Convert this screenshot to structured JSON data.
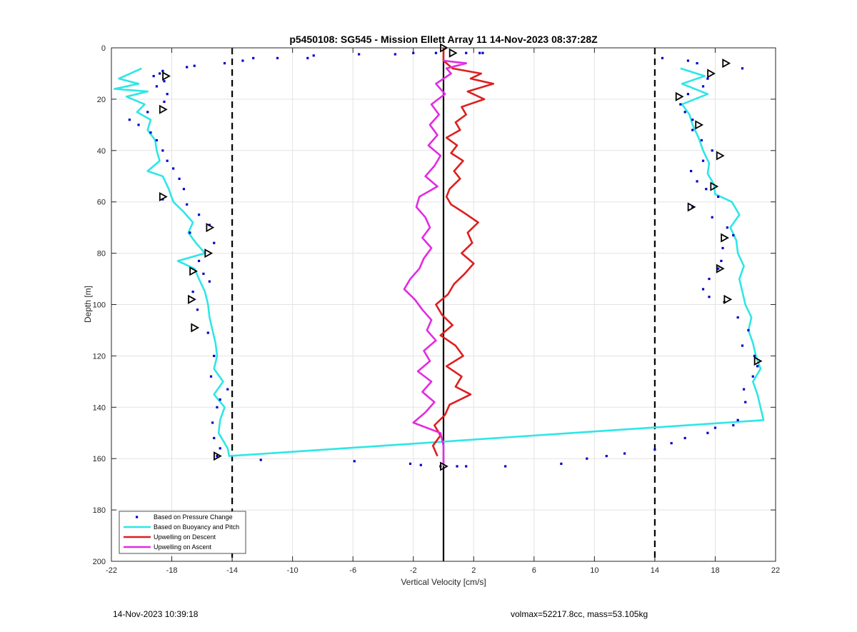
{
  "footer": {
    "timestamp": "14-Nov-2023 10:39:18",
    "params": "volmax=52217.8cc, mass=53.105kg"
  },
  "chart_data": {
    "type": "line",
    "title": "p5450108: SG545 - Mission Ellett Array 11 14-Nov-2023 08:37:28Z",
    "xlabel": "Vertical Velocity [cm/s]",
    "ylabel": "Depth [m]",
    "xlim": [
      -22,
      22
    ],
    "ylim": [
      0,
      200
    ],
    "y_reversed": true,
    "xticks": [
      -22,
      -18,
      -14,
      -10,
      -6,
      -2,
      2,
      6,
      10,
      14,
      18,
      22
    ],
    "yticks": [
      0,
      20,
      40,
      60,
      80,
      100,
      120,
      140,
      160,
      180,
      200
    ],
    "grid": true,
    "legend_position": "bottom-left",
    "reference_lines": [
      {
        "x": -14,
        "style": "dashed",
        "color": "#000000"
      },
      {
        "x": 0,
        "style": "solid",
        "color": "#000000"
      },
      {
        "x": 14,
        "style": "dashed",
        "color": "#000000"
      }
    ],
    "series": [
      {
        "name": "Based on Pressure Change",
        "kind": "points",
        "color": "#0000cc",
        "points": [
          [
            -14.5,
            6
          ],
          [
            -13.3,
            5
          ],
          [
            -12.6,
            4
          ],
          [
            -11,
            4
          ],
          [
            -9,
            4
          ],
          [
            -8.6,
            3
          ],
          [
            -5.6,
            2.5
          ],
          [
            -3.2,
            2.5
          ],
          [
            -2,
            2
          ],
          [
            -0.5,
            2
          ],
          [
            1.5,
            2
          ],
          [
            2.4,
            2
          ],
          [
            2.6,
            2
          ],
          [
            14.5,
            4
          ],
          [
            16.2,
            5
          ],
          [
            16.8,
            6
          ],
          [
            19.8,
            8
          ],
          [
            -16.5,
            7
          ],
          [
            -17,
            7.5
          ],
          [
            -18.6,
            9
          ],
          [
            -18.8,
            10
          ],
          [
            -19.2,
            11
          ],
          [
            -18.5,
            13
          ],
          [
            -19,
            15
          ],
          [
            -18.3,
            18
          ],
          [
            -18.5,
            21
          ],
          [
            -19.6,
            25
          ],
          [
            -20.8,
            28
          ],
          [
            -20.2,
            30
          ],
          [
            -19.4,
            33
          ],
          [
            -19,
            36
          ],
          [
            -18.6,
            40
          ],
          [
            -18.3,
            44
          ],
          [
            -17.9,
            47
          ],
          [
            -17.5,
            51
          ],
          [
            -17.2,
            55
          ],
          [
            -18.6,
            59
          ],
          [
            -17,
            61
          ],
          [
            -16.2,
            65
          ],
          [
            -15.5,
            69
          ],
          [
            -16.8,
            72
          ],
          [
            -15.2,
            76
          ],
          [
            -16.2,
            83
          ],
          [
            -15.9,
            88
          ],
          [
            -15.5,
            91
          ],
          [
            -16.6,
            95
          ],
          [
            -16.3,
            102
          ],
          [
            -15.6,
            111
          ],
          [
            -15.2,
            120
          ],
          [
            -15.4,
            128
          ],
          [
            -14.3,
            133
          ],
          [
            -14.8,
            137
          ],
          [
            -15,
            140
          ],
          [
            -15.3,
            146
          ],
          [
            -15.2,
            152
          ],
          [
            -14.8,
            156
          ],
          [
            -15,
            159
          ],
          [
            -12.1,
            160.5
          ],
          [
            -5.9,
            161
          ],
          [
            -2.2,
            162
          ],
          [
            -1.5,
            162.5
          ],
          [
            -0.2,
            163
          ],
          [
            0.9,
            163
          ],
          [
            1.5,
            163
          ],
          [
            4.1,
            163
          ],
          [
            7.8,
            162
          ],
          [
            9.5,
            160
          ],
          [
            10.8,
            159
          ],
          [
            12,
            158
          ],
          [
            14,
            156.5
          ],
          [
            15.1,
            154
          ],
          [
            16,
            152
          ],
          [
            17.5,
            150
          ],
          [
            18,
            148
          ],
          [
            19.2,
            147
          ],
          [
            19.5,
            145
          ],
          [
            17.5,
            12
          ],
          [
            17.2,
            15
          ],
          [
            16.2,
            18
          ],
          [
            15.7,
            22
          ],
          [
            16,
            25
          ],
          [
            16.5,
            28
          ],
          [
            16.5,
            32
          ],
          [
            17.1,
            36
          ],
          [
            17.8,
            40
          ],
          [
            17.2,
            44
          ],
          [
            16.4,
            48
          ],
          [
            16.8,
            52
          ],
          [
            17.4,
            55
          ],
          [
            18.2,
            58
          ],
          [
            16.5,
            62
          ],
          [
            17.8,
            66
          ],
          [
            18.8,
            70
          ],
          [
            19.2,
            73
          ],
          [
            18.5,
            78
          ],
          [
            18.4,
            83
          ],
          [
            18.2,
            86
          ],
          [
            17.6,
            90
          ],
          [
            17.2,
            94
          ],
          [
            17.6,
            97
          ],
          [
            18.6,
            99
          ],
          [
            19.5,
            105
          ],
          [
            20.2,
            110
          ],
          [
            19.8,
            116
          ],
          [
            20.6,
            120
          ],
          [
            20.8,
            124
          ],
          [
            20.5,
            128
          ],
          [
            19.9,
            133
          ],
          [
            20,
            138
          ]
        ]
      },
      {
        "name": "Based on Buoyancy and Pitch",
        "kind": "line",
        "color": "#2ee6e6",
        "points": [
          [
            -20,
            8
          ],
          [
            -21.5,
            12
          ],
          [
            -20.2,
            14
          ],
          [
            -21.8,
            16
          ],
          [
            -19.6,
            17
          ],
          [
            -21,
            19
          ],
          [
            -19.8,
            22
          ],
          [
            -20.3,
            25
          ],
          [
            -19.4,
            28
          ],
          [
            -19.6,
            32
          ],
          [
            -19.1,
            36
          ],
          [
            -19,
            40
          ],
          [
            -18.8,
            44
          ],
          [
            -19.6,
            48
          ],
          [
            -18.6,
            50
          ],
          [
            -18.2,
            55
          ],
          [
            -17.9,
            60
          ],
          [
            -17.2,
            64
          ],
          [
            -16.6,
            68
          ],
          [
            -16.9,
            72
          ],
          [
            -16.4,
            76
          ],
          [
            -15.8,
            80
          ],
          [
            -17.6,
            83
          ],
          [
            -16.5,
            86
          ],
          [
            -16.2,
            90
          ],
          [
            -15.8,
            95
          ],
          [
            -15.6,
            100
          ],
          [
            -15.5,
            105
          ],
          [
            -15.3,
            110
          ],
          [
            -15.1,
            115
          ],
          [
            -15,
            120
          ],
          [
            -15.2,
            125
          ],
          [
            -14.6,
            130
          ],
          [
            -15.2,
            135
          ],
          [
            -14.5,
            140
          ],
          [
            -14.8,
            145
          ],
          [
            -14.9,
            150
          ],
          [
            -14.3,
            156
          ],
          [
            -14.2,
            159
          ],
          [
            21.2,
            145
          ],
          [
            21,
            140
          ],
          [
            20.8,
            135
          ],
          [
            20.5,
            130
          ],
          [
            21,
            125
          ],
          [
            20.7,
            120
          ],
          [
            20.5,
            115
          ],
          [
            20.2,
            110
          ],
          [
            20.4,
            105
          ],
          [
            20,
            100
          ],
          [
            19.8,
            95
          ],
          [
            19.6,
            90
          ],
          [
            19.9,
            85
          ],
          [
            19.5,
            80
          ],
          [
            19.4,
            75
          ],
          [
            19,
            70
          ],
          [
            19.6,
            65
          ],
          [
            19.1,
            60
          ],
          [
            18,
            57
          ],
          [
            17.9,
            53
          ],
          [
            17.5,
            49
          ],
          [
            17.6,
            45
          ],
          [
            17.2,
            40
          ],
          [
            16.9,
            35
          ],
          [
            16.5,
            30
          ],
          [
            16.3,
            26
          ],
          [
            15.8,
            22
          ],
          [
            17.5,
            18
          ],
          [
            15.8,
            14
          ],
          [
            17.3,
            11
          ],
          [
            15.7,
            8
          ]
        ]
      },
      {
        "name": "Upwelling on Descent",
        "kind": "line",
        "color": "#dd1f1f",
        "points": [
          [
            0,
            0
          ],
          [
            0,
            3
          ],
          [
            0,
            5
          ],
          [
            0.6,
            8
          ],
          [
            2.5,
            10
          ],
          [
            1.8,
            12
          ],
          [
            3.3,
            14
          ],
          [
            1.6,
            17
          ],
          [
            2.7,
            20
          ],
          [
            1.2,
            23
          ],
          [
            1.5,
            26
          ],
          [
            0.8,
            29
          ],
          [
            1.1,
            32
          ],
          [
            0.2,
            35
          ],
          [
            0.9,
            38
          ],
          [
            0.5,
            41
          ],
          [
            1.3,
            44
          ],
          [
            0.7,
            48
          ],
          [
            1.1,
            51
          ],
          [
            0.4,
            55
          ],
          [
            0.2,
            58
          ],
          [
            0.5,
            61
          ],
          [
            1.3,
            64
          ],
          [
            2.3,
            68
          ],
          [
            1.6,
            72
          ],
          [
            1.9,
            76
          ],
          [
            1.2,
            80
          ],
          [
            2,
            84
          ],
          [
            1.4,
            88
          ],
          [
            0.7,
            92
          ],
          [
            0.3,
            96
          ],
          [
            -0.5,
            100
          ],
          [
            -0.1,
            104
          ],
          [
            0.6,
            108
          ],
          [
            -0.2,
            112
          ],
          [
            0.8,
            116
          ],
          [
            1.3,
            120
          ],
          [
            0.2,
            124
          ],
          [
            1.2,
            128
          ],
          [
            0.8,
            132
          ],
          [
            1.8,
            135
          ],
          [
            0.4,
            139
          ],
          [
            0.1,
            143
          ],
          [
            -0.6,
            147
          ],
          [
            -0.2,
            151
          ],
          [
            -0.7,
            155
          ],
          [
            -0.4,
            159
          ]
        ]
      },
      {
        "name": "Upwelling on Ascent",
        "kind": "line",
        "color": "#e22be2",
        "points": [
          [
            0,
            5
          ],
          [
            1.5,
            6
          ],
          [
            0.2,
            8
          ],
          [
            0.5,
            10
          ],
          [
            -0.5,
            14
          ],
          [
            0.1,
            18
          ],
          [
            -0.8,
            22
          ],
          [
            -0.3,
            26
          ],
          [
            -0.9,
            30
          ],
          [
            -0.4,
            34
          ],
          [
            -1,
            38
          ],
          [
            -0.2,
            42
          ],
          [
            -0.6,
            46
          ],
          [
            -1.2,
            50
          ],
          [
            -0.4,
            54
          ],
          [
            -1.6,
            58
          ],
          [
            -1.8,
            62
          ],
          [
            -1.2,
            66
          ],
          [
            -0.9,
            70
          ],
          [
            -1.4,
            74
          ],
          [
            -0.8,
            78
          ],
          [
            -1.3,
            82
          ],
          [
            -1.6,
            86
          ],
          [
            -2.2,
            90
          ],
          [
            -2.6,
            94
          ],
          [
            -1.9,
            98
          ],
          [
            -1.4,
            102
          ],
          [
            -0.8,
            106
          ],
          [
            -1.1,
            110
          ],
          [
            -0.5,
            114
          ],
          [
            -1.3,
            118
          ],
          [
            -0.9,
            122
          ],
          [
            -1.7,
            126
          ],
          [
            -0.8,
            130
          ],
          [
            -1.4,
            134
          ],
          [
            -0.6,
            138
          ],
          [
            -1.2,
            142
          ],
          [
            -2,
            146
          ],
          [
            -0.2,
            150
          ],
          [
            0,
            155
          ],
          [
            0,
            160
          ],
          [
            0,
            163
          ]
        ]
      },
      {
        "name": "",
        "kind": "markers",
        "color": "#000000",
        "points": [
          [
            0,
            0
          ],
          [
            0.6,
            2
          ],
          [
            18.7,
            6
          ],
          [
            17.7,
            10
          ],
          [
            15.6,
            19
          ],
          [
            16.9,
            30
          ],
          [
            18.3,
            42
          ],
          [
            17.9,
            54
          ],
          [
            16.4,
            62
          ],
          [
            18.6,
            74
          ],
          [
            18.3,
            86
          ],
          [
            18.8,
            98
          ],
          [
            20.8,
            122
          ],
          [
            -18.4,
            11
          ],
          [
            -18.6,
            24
          ],
          [
            -18.6,
            58
          ],
          [
            -15.5,
            70
          ],
          [
            -15.6,
            80
          ],
          [
            -16.6,
            87
          ],
          [
            -16.7,
            98
          ],
          [
            -16.5,
            109
          ],
          [
            -15,
            159
          ],
          [
            0,
            163
          ]
        ]
      }
    ]
  }
}
